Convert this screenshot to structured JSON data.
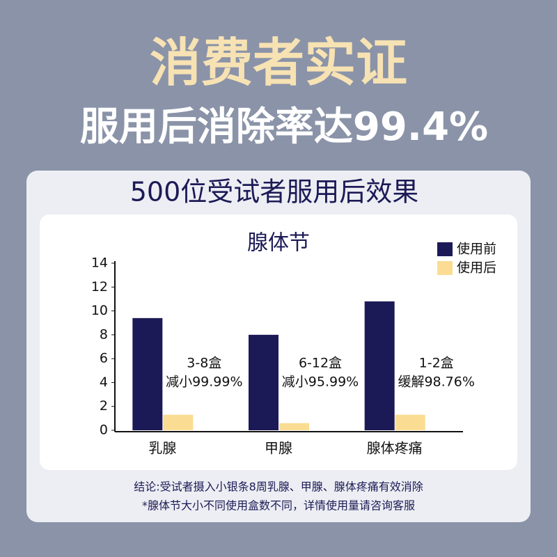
{
  "header": {
    "title": "消费者实证",
    "subtitle": "服用后消除率达99.4%"
  },
  "panel_title": "500位受试者服用后效果",
  "chart_data": {
    "type": "bar",
    "title": "腺体节",
    "categories": [
      "乳腺",
      "甲腺",
      "腺体疼痛"
    ],
    "series": [
      {
        "name": "使用前",
        "color": "#1c1a56",
        "values": [
          9.4,
          8.0,
          10.8
        ]
      },
      {
        "name": "使用后",
        "color": "#fbdc93",
        "values": [
          1.3,
          0.6,
          1.3
        ]
      }
    ],
    "annotations": [
      [
        "3-8盒",
        "减小99.99%"
      ],
      [
        "6-12盒",
        "减小95.99%"
      ],
      [
        "1-2盒",
        "缓解98.76%"
      ]
    ],
    "ylim": [
      0,
      14
    ],
    "yticks": [
      0,
      2,
      4,
      6,
      8,
      10,
      12,
      14
    ],
    "legend": "top-right"
  },
  "footer": [
    "结论:受试者摄入小银条8周乳腺、甲腺、腺体疼痛有效消除",
    "*腺体节大小不同使用盒数不同，详情使用量请咨询客服"
  ]
}
